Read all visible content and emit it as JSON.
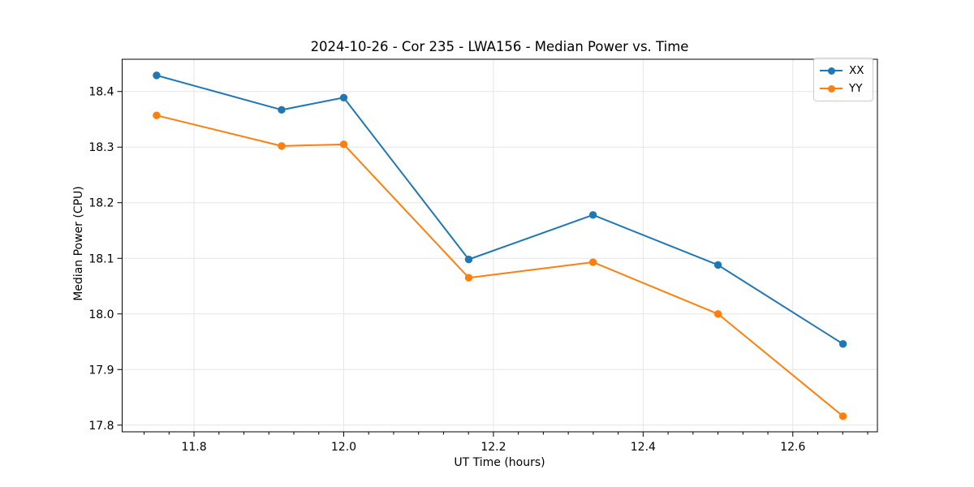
{
  "figure": {
    "title": "2024-10-26 - Cor 235 - LWA156 - Median Power vs. Time",
    "xlabel": "UT Time (hours)",
    "ylabel": "Median Power (CPU)"
  },
  "legend": {
    "position": "upper right",
    "entries": [
      {
        "label": "XX",
        "color": "#1f77b4"
      },
      {
        "label": "YY",
        "color": "#ff7f0e"
      }
    ]
  },
  "chart_data": {
    "type": "line",
    "title": "2024-10-26 - Cor 235 - LWA156 - Median Power vs. Time",
    "xlabel": "UT Time (hours)",
    "ylabel": "Median Power (CPU)",
    "x": [
      11.75,
      11.917,
      12.0,
      12.167,
      12.333,
      12.5,
      12.667
    ],
    "series": [
      {
        "name": "XX",
        "color": "#1f77b4",
        "marker": "o",
        "values": [
          18.429,
          18.367,
          18.389,
          18.098,
          18.178,
          18.088,
          17.946
        ]
      },
      {
        "name": "YY",
        "color": "#ff7f0e",
        "marker": "o",
        "values": [
          18.357,
          18.302,
          18.305,
          18.065,
          18.093,
          18.0,
          17.816
        ]
      }
    ],
    "xlim": [
      11.704,
      12.713
    ],
    "ylim": [
      17.788,
      18.458
    ],
    "xticks": [
      11.8,
      12.0,
      12.2,
      12.4,
      12.6
    ],
    "yticks": [
      17.8,
      17.9,
      18.0,
      18.1,
      18.2,
      18.3,
      18.4
    ],
    "x_minor_divisions": 6,
    "tick_label_format_decimals": 1,
    "grid": true,
    "grid_color": "#e5e5e5",
    "axis_color": "#000000",
    "legend_position": "upper right"
  }
}
